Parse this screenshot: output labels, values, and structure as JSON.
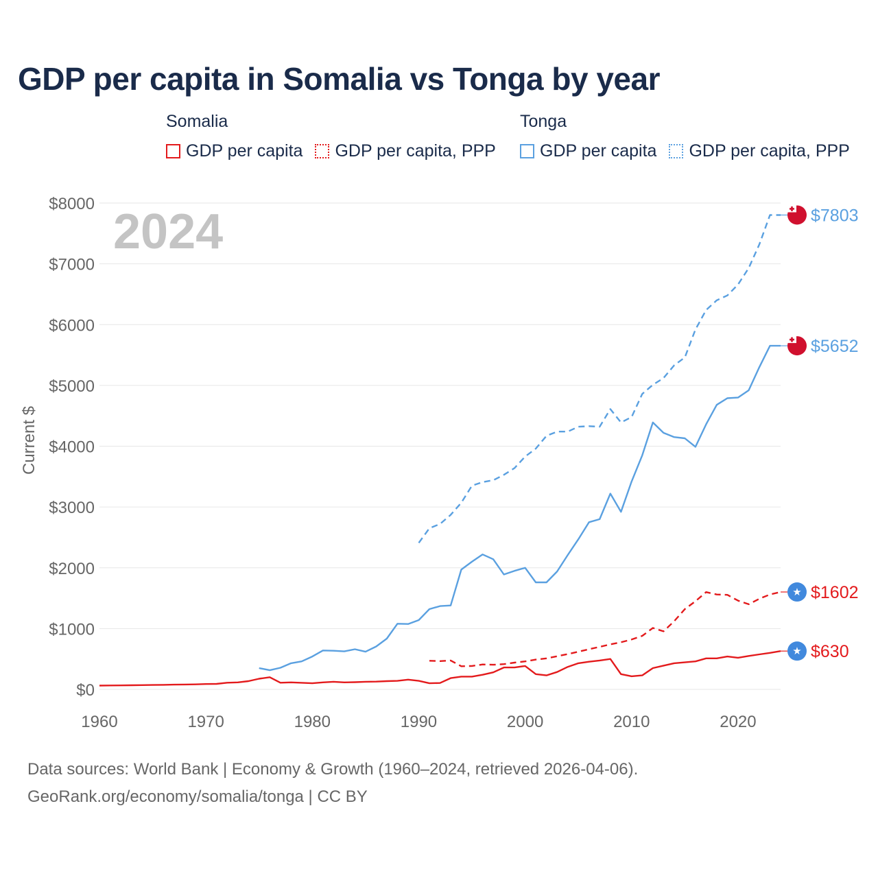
{
  "title": "GDP per capita in Somalia vs Tonga by year",
  "year_overlay": "2024",
  "legend": {
    "groups": [
      {
        "name": "Somalia",
        "color": "#e31a1c",
        "items": [
          {
            "label": "GDP per capita",
            "style": "solid"
          },
          {
            "label": "GDP per capita, PPP",
            "style": "dotted"
          }
        ]
      },
      {
        "name": "Tonga",
        "color": "#5aa0e0",
        "items": [
          {
            "label": "GDP per capita",
            "style": "solid"
          },
          {
            "label": "GDP per capita, PPP",
            "style": "dotted"
          }
        ]
      }
    ]
  },
  "footer": {
    "line1": "Data sources: World Bank | Economy & Growth (1960–2024, retrieved 2026-04-06).",
    "line2": "GeoRank.org/economy/somalia/tonga | CC BY"
  },
  "chart_data": {
    "type": "line",
    "title": "GDP per capita in Somalia vs Tonga by year",
    "xlabel": "",
    "ylabel": "Current $",
    "xlim": [
      1960,
      2024
    ],
    "ylim": [
      0,
      8000
    ],
    "x_ticks": [
      1960,
      1970,
      1980,
      1990,
      2000,
      2010,
      2020
    ],
    "y_ticks": [
      0,
      1000,
      2000,
      3000,
      4000,
      5000,
      6000,
      7000,
      8000
    ],
    "y_tick_labels": [
      "$0",
      "$1000",
      "$2000",
      "$3000",
      "$4000",
      "$5000",
      "$6000",
      "$7000",
      "$8000"
    ],
    "grid": true,
    "series": [
      {
        "name": "Somalia GDP per capita",
        "country": "Somalia",
        "color": "#e31a1c",
        "dash": "solid",
        "end_label": "$630",
        "end_value": 630,
        "flag": "somalia",
        "points": [
          [
            1960,
            62
          ],
          [
            1961,
            64
          ],
          [
            1962,
            66
          ],
          [
            1963,
            68
          ],
          [
            1964,
            70
          ],
          [
            1965,
            72
          ],
          [
            1966,
            74
          ],
          [
            1967,
            78
          ],
          [
            1968,
            80
          ],
          [
            1969,
            82
          ],
          [
            1970,
            88
          ],
          [
            1971,
            90
          ],
          [
            1972,
            110
          ],
          [
            1973,
            115
          ],
          [
            1974,
            135
          ],
          [
            1975,
            175
          ],
          [
            1976,
            200
          ],
          [
            1977,
            110
          ],
          [
            1978,
            115
          ],
          [
            1979,
            108
          ],
          [
            1980,
            100
          ],
          [
            1981,
            115
          ],
          [
            1982,
            125
          ],
          [
            1983,
            115
          ],
          [
            1984,
            118
          ],
          [
            1985,
            125
          ],
          [
            1986,
            128
          ],
          [
            1987,
            135
          ],
          [
            1988,
            140
          ],
          [
            1989,
            160
          ],
          [
            1990,
            140
          ],
          [
            1991,
            100
          ],
          [
            1992,
            105
          ],
          [
            1993,
            185
          ],
          [
            1994,
            210
          ],
          [
            1995,
            210
          ],
          [
            1996,
            240
          ],
          [
            1997,
            280
          ],
          [
            1998,
            360
          ],
          [
            1999,
            360
          ],
          [
            2000,
            385
          ],
          [
            2001,
            250
          ],
          [
            2002,
            230
          ],
          [
            2003,
            285
          ],
          [
            2004,
            370
          ],
          [
            2005,
            430
          ],
          [
            2006,
            455
          ],
          [
            2007,
            475
          ],
          [
            2008,
            500
          ],
          [
            2009,
            250
          ],
          [
            2010,
            215
          ],
          [
            2011,
            230
          ],
          [
            2012,
            350
          ],
          [
            2013,
            390
          ],
          [
            2014,
            430
          ],
          [
            2015,
            445
          ],
          [
            2016,
            460
          ],
          [
            2017,
            510
          ],
          [
            2018,
            510
          ],
          [
            2019,
            540
          ],
          [
            2020,
            520
          ],
          [
            2021,
            550
          ],
          [
            2022,
            575
          ],
          [
            2023,
            600
          ],
          [
            2024,
            630
          ]
        ]
      },
      {
        "name": "Somalia GDP per capita, PPP",
        "country": "Somalia",
        "color": "#e31a1c",
        "dash": "dashed",
        "end_label": "$1602",
        "end_value": 1602,
        "flag": "somalia",
        "points": [
          [
            1991,
            470
          ],
          [
            1992,
            465
          ],
          [
            1993,
            475
          ],
          [
            1994,
            380
          ],
          [
            1995,
            385
          ],
          [
            1996,
            410
          ],
          [
            1997,
            405
          ],
          [
            1998,
            415
          ],
          [
            1999,
            440
          ],
          [
            2000,
            460
          ],
          [
            2001,
            490
          ],
          [
            2002,
            510
          ],
          [
            2003,
            545
          ],
          [
            2004,
            580
          ],
          [
            2005,
            620
          ],
          [
            2006,
            660
          ],
          [
            2007,
            700
          ],
          [
            2008,
            740
          ],
          [
            2009,
            775
          ],
          [
            2010,
            820
          ],
          [
            2011,
            880
          ],
          [
            2012,
            1010
          ],
          [
            2013,
            955
          ],
          [
            2014,
            1120
          ],
          [
            2015,
            1320
          ],
          [
            2016,
            1450
          ],
          [
            2017,
            1600
          ],
          [
            2018,
            1560
          ],
          [
            2019,
            1555
          ],
          [
            2020,
            1460
          ],
          [
            2021,
            1400
          ],
          [
            2022,
            1490
          ],
          [
            2023,
            1560
          ],
          [
            2024,
            1602
          ]
        ]
      },
      {
        "name": "Tonga GDP per capita",
        "country": "Tonga",
        "color": "#5aa0e0",
        "dash": "solid",
        "end_label": "$5652",
        "end_value": 5652,
        "flag": "tonga",
        "points": [
          [
            1975,
            350
          ],
          [
            1976,
            315
          ],
          [
            1977,
            355
          ],
          [
            1978,
            430
          ],
          [
            1979,
            460
          ],
          [
            1980,
            540
          ],
          [
            1981,
            640
          ],
          [
            1982,
            635
          ],
          [
            1983,
            625
          ],
          [
            1984,
            660
          ],
          [
            1985,
            620
          ],
          [
            1986,
            705
          ],
          [
            1987,
            835
          ],
          [
            1988,
            1080
          ],
          [
            1989,
            1075
          ],
          [
            1990,
            1140
          ],
          [
            1991,
            1320
          ],
          [
            1992,
            1370
          ],
          [
            1993,
            1380
          ],
          [
            1994,
            1970
          ],
          [
            1995,
            2100
          ],
          [
            1996,
            2220
          ],
          [
            1997,
            2140
          ],
          [
            1998,
            1890
          ],
          [
            1999,
            1950
          ],
          [
            2000,
            2000
          ],
          [
            2001,
            1760
          ],
          [
            2002,
            1760
          ],
          [
            2003,
            1940
          ],
          [
            2004,
            2210
          ],
          [
            2005,
            2470
          ],
          [
            2006,
            2750
          ],
          [
            2007,
            2800
          ],
          [
            2008,
            3220
          ],
          [
            2009,
            2920
          ],
          [
            2010,
            3420
          ],
          [
            2011,
            3850
          ],
          [
            2012,
            4390
          ],
          [
            2013,
            4220
          ],
          [
            2014,
            4150
          ],
          [
            2015,
            4130
          ],
          [
            2016,
            3990
          ],
          [
            2017,
            4360
          ],
          [
            2018,
            4680
          ],
          [
            2019,
            4790
          ],
          [
            2020,
            4800
          ],
          [
            2021,
            4920
          ],
          [
            2022,
            5300
          ],
          [
            2023,
            5652
          ],
          [
            2024,
            5652
          ]
        ]
      },
      {
        "name": "Tonga GDP per capita, PPP",
        "country": "Tonga",
        "color": "#5aa0e0",
        "dash": "dashed",
        "end_label": "$7803",
        "end_value": 7803,
        "flag": "tonga",
        "points": [
          [
            1990,
            2410
          ],
          [
            1991,
            2650
          ],
          [
            1992,
            2720
          ],
          [
            1993,
            2870
          ],
          [
            1994,
            3070
          ],
          [
            1995,
            3350
          ],
          [
            1996,
            3410
          ],
          [
            1997,
            3440
          ],
          [
            1998,
            3530
          ],
          [
            1999,
            3640
          ],
          [
            2000,
            3830
          ],
          [
            2001,
            3960
          ],
          [
            2002,
            4170
          ],
          [
            2003,
            4240
          ],
          [
            2004,
            4240
          ],
          [
            2005,
            4320
          ],
          [
            2006,
            4330
          ],
          [
            2007,
            4320
          ],
          [
            2008,
            4610
          ],
          [
            2009,
            4390
          ],
          [
            2010,
            4480
          ],
          [
            2011,
            4860
          ],
          [
            2012,
            5010
          ],
          [
            2013,
            5120
          ],
          [
            2014,
            5330
          ],
          [
            2015,
            5460
          ],
          [
            2016,
            5920
          ],
          [
            2017,
            6240
          ],
          [
            2018,
            6400
          ],
          [
            2019,
            6480
          ],
          [
            2020,
            6660
          ],
          [
            2021,
            6930
          ],
          [
            2022,
            7320
          ],
          [
            2023,
            7803
          ],
          [
            2024,
            7803
          ]
        ]
      }
    ]
  }
}
